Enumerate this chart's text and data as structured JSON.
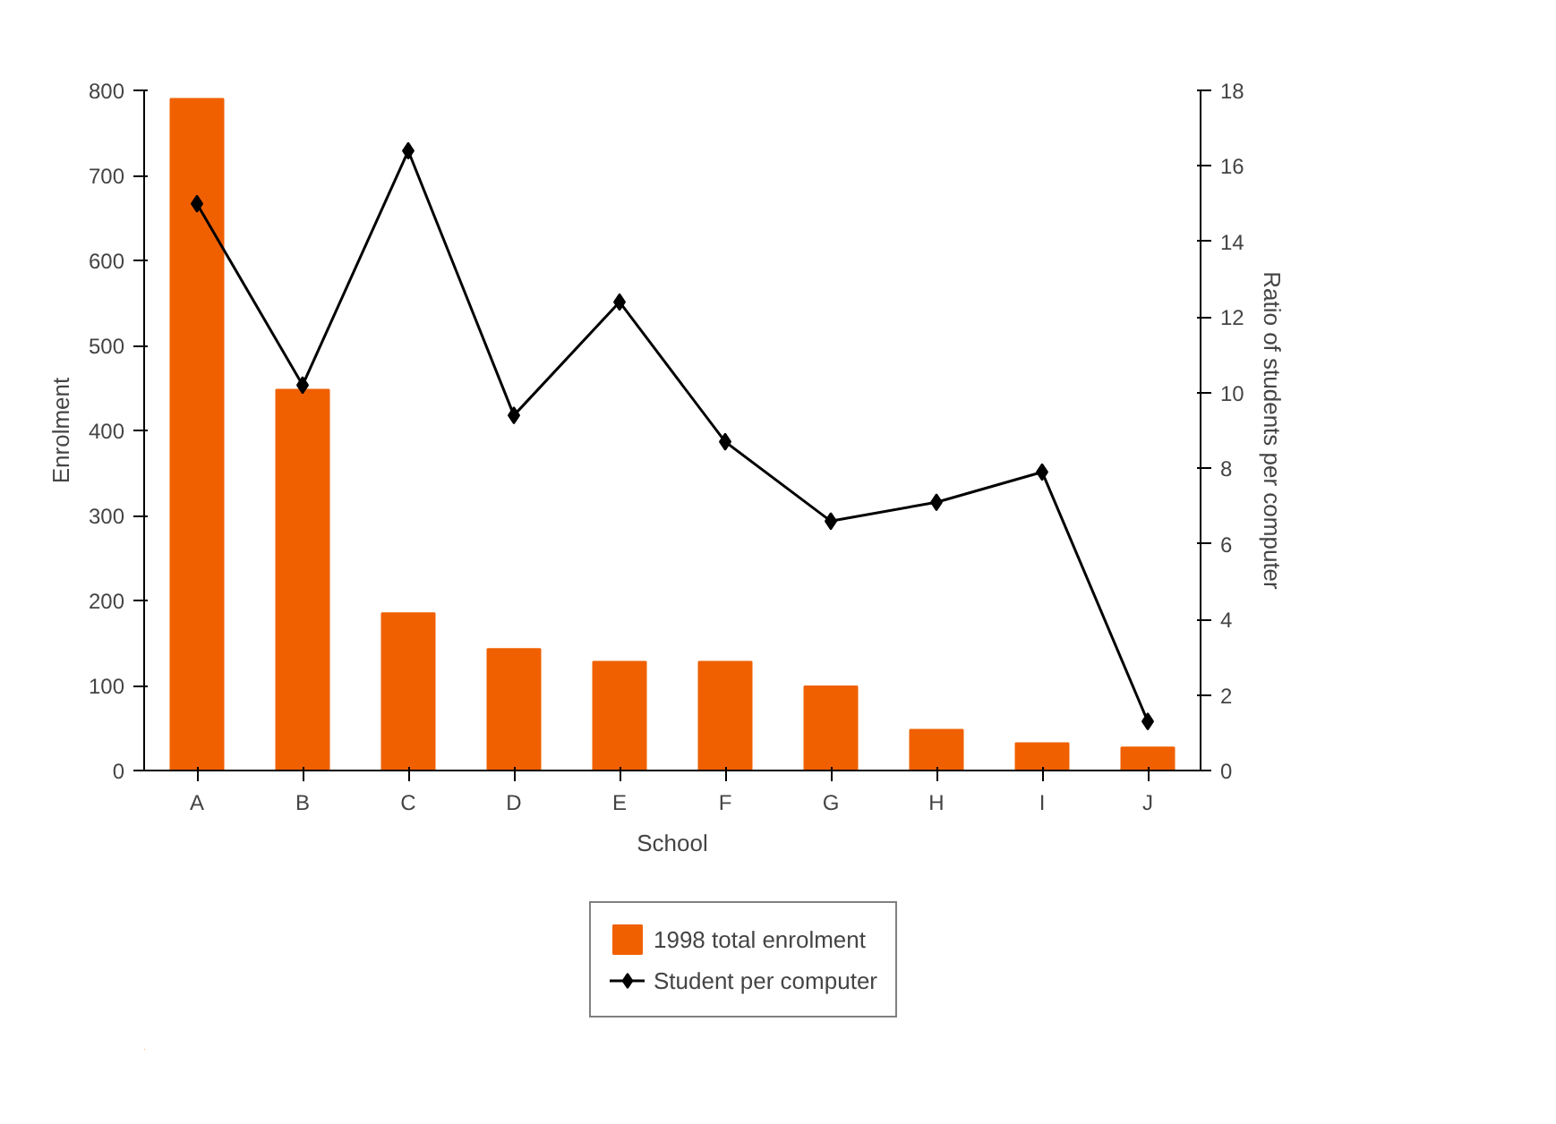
{
  "chart_data": {
    "type": "bar",
    "xlabel": "School",
    "ylabel": "Enrolment",
    "y2label": "Ratio of students per computer",
    "categories": [
      "A",
      "B",
      "C",
      "D",
      "E",
      "F",
      "G",
      "H",
      "I",
      "J"
    ],
    "series": [
      {
        "name": "1998 total enrolment",
        "color": "#f06000",
        "values": [
          790,
          448,
          185,
          143,
          128,
          128,
          99,
          48,
          32,
          27
        ]
      },
      {
        "name": "Student per computer",
        "type": "line",
        "axis": "y2",
        "color": "#000000",
        "marker": "diamond",
        "values": [
          15,
          10.2,
          16.4,
          9.4,
          12.4,
          8.7,
          6.6,
          7.1,
          7.9,
          1.3
        ]
      }
    ],
    "ylim": [
      0,
      800
    ],
    "yticks": [
      0,
      100,
      200,
      300,
      400,
      500,
      600,
      700,
      800
    ],
    "y2lim": [
      0,
      18
    ],
    "y2ticks": [
      0,
      2,
      4,
      6,
      8,
      10,
      12,
      14,
      16,
      18
    ],
    "grid": false,
    "legend": "bottom"
  }
}
